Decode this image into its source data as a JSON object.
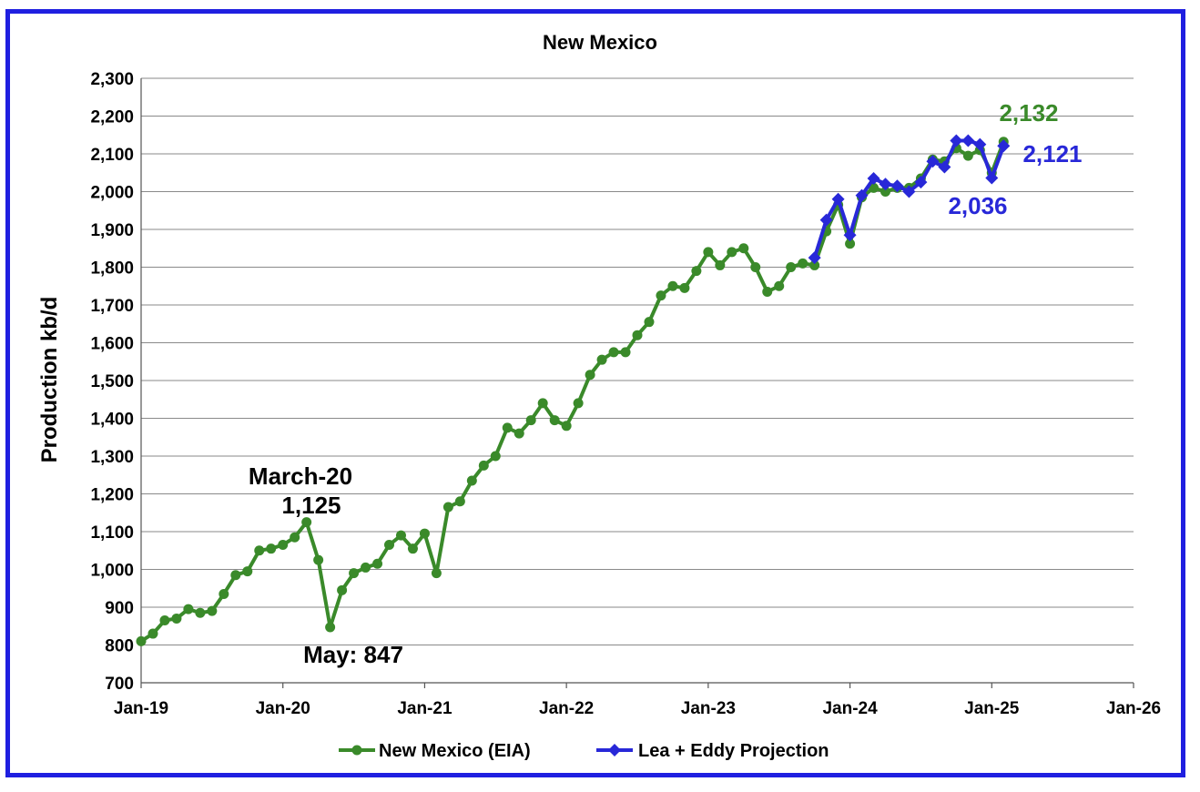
{
  "chart_data": {
    "type": "line",
    "title": "New Mexico",
    "ylabel": "Production kb/d",
    "xlabel": "",
    "ylim": [
      700,
      2300
    ],
    "yticks": [
      700,
      800,
      900,
      1000,
      1100,
      1200,
      1300,
      1400,
      1500,
      1600,
      1700,
      1800,
      1900,
      2000,
      2100,
      2200,
      2300
    ],
    "ytick_labels": [
      "700",
      "800",
      "900",
      "1,000",
      "1,100",
      "1,200",
      "1,300",
      "1,400",
      "1,500",
      "1,600",
      "1,700",
      "1,800",
      "1,900",
      "2,000",
      "2,100",
      "2,200",
      "2,300"
    ],
    "xlim": [
      "2019-01",
      "2026-01"
    ],
    "xticks": [
      "2019-01",
      "2020-01",
      "2021-01",
      "2022-01",
      "2023-01",
      "2024-01",
      "2025-01",
      "2026-01"
    ],
    "xtick_labels": [
      "Jan-19",
      "Jan-20",
      "Jan-21",
      "Jan-22",
      "Jan-23",
      "Jan-24",
      "Jan-25",
      "Jan-26"
    ],
    "grid": true,
    "legend_position": "bottom",
    "series": [
      {
        "name": "New Mexico (EIA)",
        "color": "#3a8a2a",
        "marker": "circle",
        "x": [
          "2019-01",
          "2019-02",
          "2019-03",
          "2019-04",
          "2019-05",
          "2019-06",
          "2019-07",
          "2019-08",
          "2019-09",
          "2019-10",
          "2019-11",
          "2019-12",
          "2020-01",
          "2020-02",
          "2020-03",
          "2020-04",
          "2020-05",
          "2020-06",
          "2020-07",
          "2020-08",
          "2020-09",
          "2020-10",
          "2020-11",
          "2020-12",
          "2021-01",
          "2021-02",
          "2021-03",
          "2021-04",
          "2021-05",
          "2021-06",
          "2021-07",
          "2021-08",
          "2021-09",
          "2021-10",
          "2021-11",
          "2021-12",
          "2022-01",
          "2022-02",
          "2022-03",
          "2022-04",
          "2022-05",
          "2022-06",
          "2022-07",
          "2022-08",
          "2022-09",
          "2022-10",
          "2022-11",
          "2022-12",
          "2023-01",
          "2023-02",
          "2023-03",
          "2023-04",
          "2023-05",
          "2023-06",
          "2023-07",
          "2023-08",
          "2023-09",
          "2023-10",
          "2023-11",
          "2023-12",
          "2024-01",
          "2024-02",
          "2024-03",
          "2024-04",
          "2024-05",
          "2024-06",
          "2024-07",
          "2024-08",
          "2024-09",
          "2024-10",
          "2024-11",
          "2024-12",
          "2025-01",
          "2025-02"
        ],
        "values": [
          810,
          830,
          865,
          870,
          895,
          885,
          890,
          935,
          985,
          995,
          1050,
          1055,
          1065,
          1085,
          1125,
          1025,
          847,
          945,
          990,
          1005,
          1015,
          1065,
          1090,
          1055,
          1095,
          990,
          1165,
          1180,
          1235,
          1275,
          1300,
          1375,
          1360,
          1395,
          1440,
          1395,
          1380,
          1440,
          1515,
          1555,
          1575,
          1575,
          1620,
          1655,
          1725,
          1750,
          1745,
          1790,
          1840,
          1805,
          1840,
          1850,
          1800,
          1735,
          1750,
          1800,
          1810,
          1805,
          1895,
          1965,
          1862,
          1985,
          2010,
          2000,
          2010,
          2010,
          2035,
          2085,
          2080,
          2115,
          2095,
          2110,
          2050,
          2132
        ]
      },
      {
        "name": "Lea + Eddy Projection",
        "color": "#2828d8",
        "marker": "diamond",
        "x": [
          "2023-10",
          "2023-11",
          "2023-12",
          "2024-01",
          "2024-02",
          "2024-03",
          "2024-04",
          "2024-05",
          "2024-06",
          "2024-07",
          "2024-08",
          "2024-09",
          "2024-10",
          "2024-11",
          "2024-12",
          "2025-01",
          "2025-02"
        ],
        "values": [
          1825,
          1925,
          1980,
          1885,
          1990,
          2035,
          2020,
          2015,
          2000,
          2025,
          2080,
          2065,
          2135,
          2135,
          2125,
          2036,
          2121
        ]
      }
    ],
    "annotations": [
      {
        "text": "March-20",
        "color": "#000000"
      },
      {
        "text": "1,125",
        "color": "#000000"
      },
      {
        "text": "May: 847",
        "color": "#000000"
      },
      {
        "text": "2,132",
        "color": "#3a8a2a"
      },
      {
        "text": "2,121",
        "color": "#2828d8"
      },
      {
        "text": "2,036",
        "color": "#2828d8"
      }
    ]
  }
}
